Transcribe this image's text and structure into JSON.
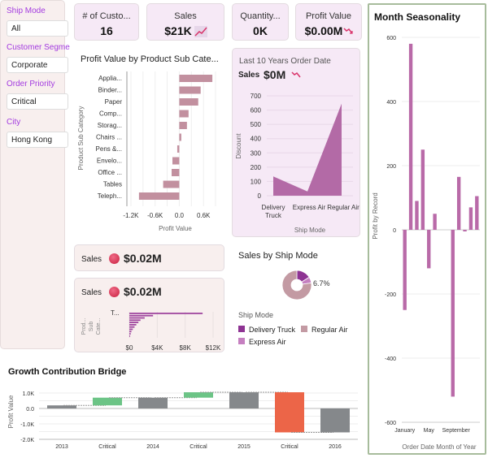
{
  "filters": [
    {
      "label": "Ship Mode",
      "value": "All"
    },
    {
      "label": "Customer Segment",
      "value": "Corporate"
    },
    {
      "label": "Order Priority",
      "value": "Critical"
    },
    {
      "label": "City",
      "value": "Hong Kong"
    }
  ],
  "kpis": [
    {
      "title": "# of Custo...",
      "value": "16",
      "icon": ""
    },
    {
      "title": "Sales",
      "value": "$21K",
      "icon": "trend-up-icon"
    },
    {
      "title": "Quantity...",
      "value": "0K",
      "icon": ""
    },
    {
      "title": "Profit Value",
      "value": "$0.00M",
      "icon": "trend-down-icon"
    }
  ],
  "profit_by_subcat": {
    "title": "Profit Value by Product Sub Cate...",
    "ylabel": "Product Sub Category",
    "xlabel": "Profit Value",
    "categories": [
      "Applia...",
      "Binder...",
      "Paper",
      "Comp...",
      "Storag...",
      "Chairs ...",
      "Pens &...",
      "Envelo...",
      "Office ...",
      "Tables",
      "Teleph..."
    ],
    "values": [
      820,
      530,
      470,
      230,
      190,
      50,
      -50,
      -170,
      -190,
      -400,
      -1000
    ],
    "ticks": [
      "-1.2K",
      "-0.6K",
      "0.0",
      "0.6K"
    ]
  },
  "area_panel": {
    "subtitle": "Last 10 Years Order Date",
    "metric_label": "Sales",
    "metric_value": "$0M",
    "ylabel": "Discount",
    "xlabel": "Ship Mode",
    "categories": [
      "Delivery Truck",
      "Express Air",
      "Regular Air"
    ],
    "values": [
      135,
      30,
      645
    ],
    "yticks": [
      "0",
      "100",
      "200",
      "300",
      "400",
      "500",
      "600",
      "700"
    ]
  },
  "sales_card1": {
    "label": "Sales",
    "value": "$0.02M"
  },
  "sales_card2": {
    "label": "Sales",
    "value": "$0.02M",
    "ylabel": "Prod... Sub Cate...",
    "first_cat": "T...",
    "values": [
      10500,
      3400,
      2200,
      1600,
      1300,
      1000,
      750,
      500,
      300,
      200,
      120
    ],
    "xticks": [
      "$0",
      "$4K",
      "$8K",
      "$12K"
    ]
  },
  "donut": {
    "title": "Sales by Ship Mode",
    "label": "6.7%",
    "legend_title": "Ship Mode",
    "slices": [
      {
        "name": "Delivery Truck",
        "value": 16,
        "color": "#8e3393"
      },
      {
        "name": "Express Air",
        "value": 6.7,
        "color": "#c57fc0"
      },
      {
        "name": "Regular Air",
        "value": 77.3,
        "color": "#c39aa3"
      }
    ]
  },
  "seasonality": {
    "title": "Month Seasonality",
    "ylabel": "Profit by Record",
    "xlabel": "Order Date Month of Year",
    "values": [
      -250,
      580,
      90,
      250,
      -120,
      50,
      0,
      0,
      -520,
      165,
      -5,
      70,
      105
    ],
    "yticks": [
      "600",
      "400",
      "200",
      "0",
      "-200",
      "-400",
      "-600"
    ],
    "xticks": [
      "January",
      "May",
      "September"
    ]
  },
  "bridge": {
    "title": "Growth Contribution Bridge",
    "ylabel": "Profit Value",
    "categories": [
      "2013",
      "Critical",
      "2014",
      "Critical",
      "2015",
      "Critical",
      "2016"
    ],
    "bars": [
      {
        "type": "total",
        "start": 0,
        "end": 200
      },
      {
        "type": "up",
        "start": 200,
        "end": 700
      },
      {
        "type": "total",
        "start": 0,
        "end": 700
      },
      {
        "type": "up",
        "start": 700,
        "end": 1050
      },
      {
        "type": "total",
        "start": 0,
        "end": 1050
      },
      {
        "type": "down",
        "start": 1050,
        "end": -1550
      },
      {
        "type": "total",
        "start": 0,
        "end": -1550
      }
    ],
    "yticks": [
      "1.0K",
      "0.0",
      "-1.0K",
      "-2.0K"
    ]
  }
}
